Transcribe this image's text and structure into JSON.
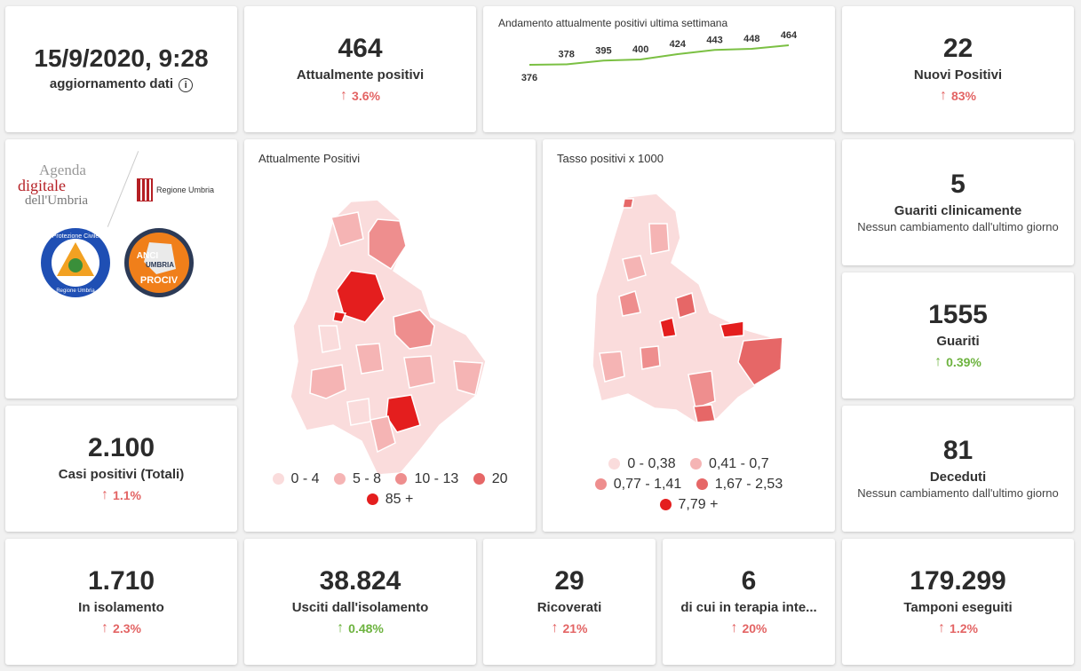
{
  "update": {
    "datetime": "15/9/2020, 9:28",
    "label": "aggiornamento dati",
    "info_icon": "info-icon"
  },
  "attualmente": {
    "value": "464",
    "label": "Attualmente positivi",
    "trend": "3.6%"
  },
  "sparkline": {
    "title": "Andamento attualmente positivi ultima settimana",
    "values": [
      376,
      378,
      395,
      400,
      424,
      443,
      448,
      464
    ],
    "labels": [
      "376",
      "378",
      "395",
      "400",
      "424",
      "443",
      "448",
      "464"
    ],
    "color": "#7bc043"
  },
  "nuovi": {
    "value": "22",
    "label": "Nuovi Positivi",
    "trend": "83%"
  },
  "logos": {
    "agenda_line1": "Agenda",
    "agenda_line2": "digitale",
    "agenda_line3": "dell'Umbria",
    "regione": "Regione Umbria",
    "protezione_ring": "Protezione Civile",
    "protezione_bottom": "Regione Umbria",
    "anci_line1": "ANCI",
    "anci_line2": "UMBRIA",
    "anci_line3": "PROCIV"
  },
  "map1": {
    "title": "Attualmente Positivi",
    "legend": [
      {
        "label": "0 - 4",
        "color": "#fadcdc"
      },
      {
        "label": "5 - 8",
        "color": "#f5b4b4"
      },
      {
        "label": "10 - 13",
        "color": "#ee8e8e"
      },
      {
        "label": "20",
        "color": "#e66767"
      },
      {
        "label": "85 +",
        "color": "#e41e1e"
      }
    ]
  },
  "map2": {
    "title": "Tasso positivi x 1000",
    "legend": [
      {
        "label": "0 - 0,38",
        "color": "#fadcdc"
      },
      {
        "label": "0,41 - 0,7",
        "color": "#f5b4b4"
      },
      {
        "label": "0,77 - 1,41",
        "color": "#ee8e8e"
      },
      {
        "label": "1,67 - 2,53",
        "color": "#e66767"
      },
      {
        "label": "7,79 +",
        "color": "#e41e1e"
      }
    ]
  },
  "guariti_clinicamente": {
    "value": "5",
    "label": "Guariti clinicamente",
    "sub": "Nessun cambiamento dall'ultimo giorno"
  },
  "guariti": {
    "value": "1555",
    "label": "Guariti",
    "trend": "0.39%"
  },
  "casi": {
    "value": "2.100",
    "label": "Casi positivi (Totali)",
    "trend": "1.1%"
  },
  "deceduti": {
    "value": "81",
    "label": "Deceduti",
    "sub": "Nessun cambiamento dall'ultimo giorno"
  },
  "isolamento": {
    "value": "1.710",
    "label": "In isolamento",
    "trend": "2.3%"
  },
  "usciti": {
    "value": "38.824",
    "label": "Usciti dall'isolamento",
    "trend": "0.48%"
  },
  "ricoverati": {
    "value": "29",
    "label": "Ricoverati",
    "trend": "21%"
  },
  "terapia": {
    "value": "6",
    "label": "di cui in terapia inte...",
    "trend": "20%"
  },
  "tamponi": {
    "value": "179.299",
    "label": "Tamponi eseguiti",
    "trend": "1.2%"
  },
  "icons": {
    "arrow_up": "↑"
  }
}
